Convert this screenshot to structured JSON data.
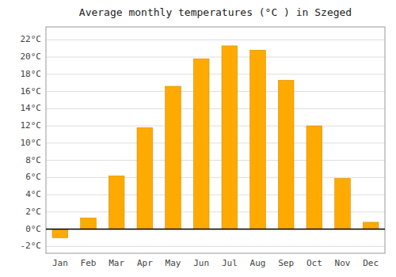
{
  "chart_data": {
    "type": "bar",
    "title": "Average monthly temperatures (°C ) in Szeged",
    "categories": [
      "Jan",
      "Feb",
      "Mar",
      "Apr",
      "May",
      "Jun",
      "Jul",
      "Aug",
      "Sep",
      "Oct",
      "Nov",
      "Dec"
    ],
    "values": [
      -1.0,
      1.3,
      6.2,
      11.8,
      16.6,
      19.8,
      21.3,
      20.8,
      17.3,
      12.0,
      5.9,
      0.8
    ],
    "color": "#FFAA00",
    "ylim": [
      -2.8,
      23.5
    ],
    "yticks": [
      {
        "value": -2,
        "label": "-2°C"
      },
      {
        "value": 0,
        "label": "0°C"
      },
      {
        "value": 2,
        "label": "2°C"
      },
      {
        "value": 4,
        "label": "4°C"
      },
      {
        "value": 6,
        "label": "6°C"
      },
      {
        "value": 8,
        "label": "8°C"
      },
      {
        "value": 10,
        "label": "10°C"
      },
      {
        "value": 12,
        "label": "12°C"
      },
      {
        "value": 14,
        "label": "14°C"
      },
      {
        "value": 16,
        "label": "16°C"
      },
      {
        "value": 18,
        "label": "18°C"
      },
      {
        "value": 20,
        "label": "20°C"
      },
      {
        "value": 22,
        "label": "22°C"
      }
    ],
    "grid": true
  }
}
